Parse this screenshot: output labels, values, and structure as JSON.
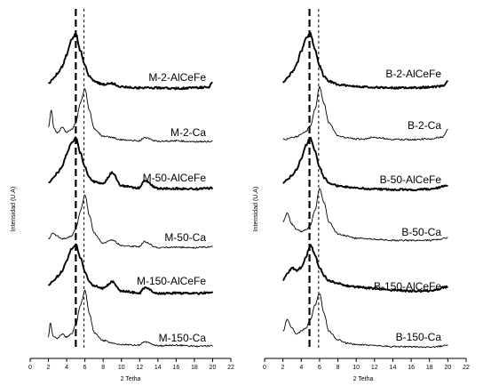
{
  "chart_data": [
    {
      "type": "line",
      "panel": "left",
      "xlabel": "2 Tetha",
      "ylabel": "Intensidad (U.A)",
      "xlim": [
        0,
        22
      ],
      "x_ticks": [
        0,
        2,
        4,
        6,
        8,
        10,
        12,
        14,
        16,
        18,
        20,
        22
      ],
      "x_tick_labels": [
        "0",
        "2",
        "4",
        "6",
        "8",
        "10",
        "12",
        "14",
        "16",
        "18",
        "20",
        "22"
      ],
      "grid": false,
      "reference_lines": [
        {
          "x": 5.0,
          "style": "long-dash"
        },
        {
          "x": 5.9,
          "style": "short-dash"
        }
      ],
      "series": [
        {
          "name": "M-2-AlCeFe",
          "weight": "bold",
          "x": [
            2,
            2.5,
            3,
            3.5,
            4,
            4.5,
            5,
            5.5,
            6,
            6.5,
            7,
            8,
            9,
            10,
            12,
            14,
            16,
            18,
            19.5,
            20
          ],
          "intensity": [
            0.1,
            0.18,
            0.28,
            0.4,
            0.62,
            0.88,
            1.0,
            0.7,
            0.42,
            0.22,
            0.14,
            0.08,
            0.1,
            0.04,
            0.02,
            0.02,
            0.01,
            0.02,
            0.03,
            0.12
          ]
        },
        {
          "name": "M-2-Ca",
          "weight": "normal",
          "x": [
            2,
            2.3,
            2.6,
            3,
            3.5,
            4,
            4.5,
            5,
            5.5,
            6,
            6.5,
            7,
            8,
            9,
            10,
            12,
            12.5,
            14,
            16,
            18,
            20
          ],
          "intensity": [
            0.3,
            0.62,
            0.28,
            0.2,
            0.3,
            0.22,
            0.26,
            0.38,
            0.75,
            1.0,
            0.6,
            0.28,
            0.14,
            0.12,
            0.08,
            0.06,
            0.12,
            0.05,
            0.06,
            0.04,
            0.05
          ]
        },
        {
          "name": "M-50-AlCeFe",
          "weight": "bold",
          "x": [
            2,
            2.5,
            3,
            3.5,
            4,
            4.5,
            5,
            5.5,
            6,
            6.5,
            7,
            8,
            9,
            10,
            12,
            12.5,
            14,
            16,
            18,
            20
          ],
          "intensity": [
            0.15,
            0.25,
            0.35,
            0.45,
            0.7,
            0.9,
            1.0,
            0.72,
            0.45,
            0.25,
            0.18,
            0.14,
            0.35,
            0.1,
            0.06,
            0.2,
            0.05,
            0.05,
            0.04,
            0.06
          ]
        },
        {
          "name": "M-50-Ca",
          "weight": "normal",
          "x": [
            2,
            2.5,
            3,
            3.5,
            4,
            4.5,
            5,
            5.5,
            6,
            6.5,
            7,
            8,
            9,
            10,
            12,
            12.5,
            14,
            16,
            18,
            20
          ],
          "intensity": [
            0.2,
            0.3,
            0.25,
            0.2,
            0.22,
            0.25,
            0.38,
            0.7,
            1.0,
            0.62,
            0.3,
            0.12,
            0.18,
            0.08,
            0.06,
            0.15,
            0.04,
            0.05,
            0.04,
            0.06
          ]
        },
        {
          "name": "M-150-AlCeFe",
          "weight": "bold",
          "x": [
            2,
            2.5,
            3,
            3.5,
            4,
            4.5,
            5,
            5.5,
            6,
            6.5,
            7,
            8,
            9,
            10,
            12,
            12.5,
            14,
            16,
            18,
            20
          ],
          "intensity": [
            0.2,
            0.3,
            0.38,
            0.48,
            0.7,
            0.9,
            1.0,
            0.75,
            0.48,
            0.28,
            0.2,
            0.15,
            0.28,
            0.1,
            0.06,
            0.16,
            0.05,
            0.06,
            0.05,
            0.08
          ]
        },
        {
          "name": "M-150-Ca",
          "weight": "normal",
          "x": [
            2,
            2.2,
            2.5,
            3,
            3.5,
            4,
            4.5,
            5,
            5.5,
            6,
            6.5,
            7,
            8,
            9,
            10,
            12,
            12.5,
            14,
            16,
            18,
            20
          ],
          "intensity": [
            0.2,
            0.45,
            0.22,
            0.18,
            0.25,
            0.2,
            0.25,
            0.4,
            0.75,
            1.0,
            0.6,
            0.28,
            0.14,
            0.1,
            0.07,
            0.06,
            0.12,
            0.05,
            0.06,
            0.04,
            0.05
          ]
        }
      ]
    },
    {
      "type": "line",
      "panel": "right",
      "xlabel": "2 Tetha",
      "ylabel": "Intensidad (U.A)",
      "xlim": [
        0,
        22
      ],
      "x_ticks": [
        0,
        2,
        4,
        6,
        8,
        10,
        12,
        14,
        16,
        18,
        20,
        22
      ],
      "x_tick_labels": [
        "0",
        "2",
        "4",
        "6",
        "8",
        "10",
        "12",
        "14",
        "16",
        "18",
        "20",
        "22"
      ],
      "grid": false,
      "reference_lines": [
        {
          "x": 4.9,
          "style": "long-dash"
        },
        {
          "x": 5.9,
          "style": "short-dash"
        }
      ],
      "series": [
        {
          "name": "B-2-AlCeFe",
          "weight": "bold",
          "x": [
            2,
            2.5,
            3,
            3.5,
            4,
            4.5,
            5,
            5.5,
            6,
            6.5,
            7,
            8,
            9,
            10,
            12,
            14,
            16,
            18,
            19.5,
            20
          ],
          "intensity": [
            0.12,
            0.2,
            0.3,
            0.45,
            0.68,
            0.92,
            1.0,
            0.72,
            0.42,
            0.22,
            0.14,
            0.08,
            0.06,
            0.04,
            0.03,
            0.02,
            0.02,
            0.03,
            0.05,
            0.14
          ]
        },
        {
          "name": "B-2-Ca",
          "weight": "normal",
          "x": [
            2,
            2.5,
            3,
            3.5,
            4,
            4.5,
            5,
            5.5,
            6,
            6.5,
            7,
            8,
            9,
            10,
            11,
            12,
            12.5,
            14,
            16,
            18,
            19.5,
            20
          ],
          "intensity": [
            0.05,
            0.06,
            0.08,
            0.1,
            0.14,
            0.2,
            0.3,
            0.6,
            1.0,
            0.7,
            0.35,
            0.12,
            0.08,
            0.06,
            0.06,
            0.1,
            0.08,
            0.05,
            0.05,
            0.06,
            0.1,
            0.25
          ]
        },
        {
          "name": "B-50-AlCeFe",
          "weight": "bold",
          "x": [
            2,
            2.5,
            3,
            3.5,
            4,
            4.5,
            5,
            5.5,
            6,
            6.5,
            7,
            8,
            9,
            10,
            12,
            14,
            16,
            18,
            20
          ],
          "intensity": [
            0.15,
            0.22,
            0.3,
            0.4,
            0.6,
            0.85,
            1.0,
            0.75,
            0.45,
            0.25,
            0.16,
            0.1,
            0.08,
            0.06,
            0.04,
            0.03,
            0.03,
            0.04,
            0.1
          ]
        },
        {
          "name": "B-50-Ca",
          "weight": "normal",
          "x": [
            2,
            2.5,
            3,
            3.5,
            4,
            4.5,
            5,
            5.5,
            6,
            6.5,
            7,
            8,
            9,
            10,
            12,
            14,
            16,
            18,
            20
          ],
          "intensity": [
            0.4,
            0.55,
            0.35,
            0.25,
            0.22,
            0.25,
            0.35,
            0.6,
            1.0,
            0.75,
            0.4,
            0.18,
            0.14,
            0.1,
            0.08,
            0.06,
            0.06,
            0.06,
            0.1
          ]
        },
        {
          "name": "B-150-AlCeFe",
          "weight": "bold",
          "x": [
            2,
            2.5,
            3,
            3.5,
            4,
            4.5,
            5,
            5.5,
            6,
            6.5,
            7,
            8,
            9,
            10,
            12,
            14,
            16,
            18,
            20
          ],
          "intensity": [
            0.3,
            0.45,
            0.55,
            0.5,
            0.55,
            0.75,
            1.0,
            0.8,
            0.55,
            0.4,
            0.3,
            0.25,
            0.2,
            0.18,
            0.15,
            0.12,
            0.1,
            0.1,
            0.18
          ]
        },
        {
          "name": "B-150-Ca",
          "weight": "normal",
          "x": [
            2,
            2.5,
            3,
            3.5,
            4,
            4.5,
            5,
            5.5,
            6,
            6.5,
            7,
            8,
            9,
            10,
            12,
            14,
            16,
            18,
            20
          ],
          "intensity": [
            0.35,
            0.55,
            0.4,
            0.3,
            0.35,
            0.4,
            0.55,
            0.8,
            1.0,
            0.65,
            0.35,
            0.2,
            0.14,
            0.12,
            0.1,
            0.08,
            0.08,
            0.07,
            0.1
          ]
        }
      ]
    }
  ]
}
